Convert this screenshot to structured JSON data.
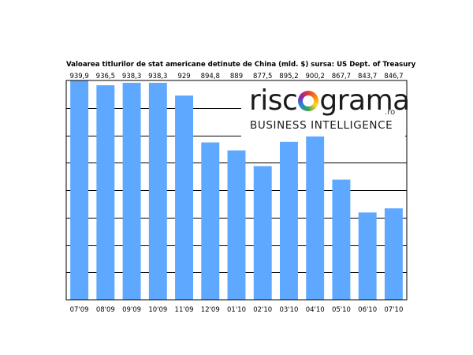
{
  "chart_data": {
    "type": "bar",
    "title": "Valoarea titlurilor de stat americane detinute de China (mld. $) sursa: US Dept. of Treasury",
    "categories": [
      "07'09",
      "08'09",
      "09'09",
      "10'09",
      "11'09",
      "12'09",
      "01'10",
      "02'10",
      "03'10",
      "04'10",
      "05'10",
      "06'10",
      "07'10"
    ],
    "values": [
      939.9,
      936.5,
      938.3,
      938.3,
      929,
      894.8,
      889,
      877.5,
      895.2,
      900.2,
      867.7,
      843.7,
      846.7
    ],
    "value_labels": [
      "939,9",
      "936,5",
      "938,3",
      "938,3",
      "929",
      "894,8",
      "889",
      "877,5",
      "895,2",
      "900,2",
      "867,7",
      "843,7",
      "846,7"
    ],
    "ylim": [
      780,
      940
    ],
    "gridline_values": [
      800,
      820,
      840,
      860,
      880,
      900,
      920
    ],
    "bar_color": "#5fa8ff",
    "grid": true
  },
  "logo": {
    "word_a": "risc",
    "word_b": "grama",
    "domain": ".ro",
    "tagline": "BUSINESS INTELLIGENCE"
  }
}
